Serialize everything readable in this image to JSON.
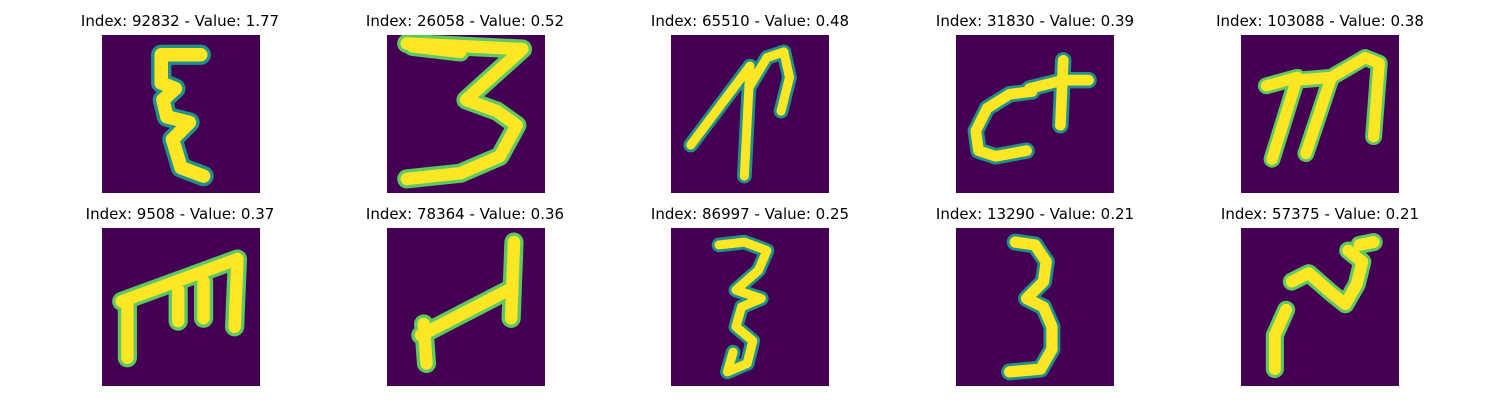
{
  "figure": {
    "background_color": "#ffffff",
    "image_background_color": "#440154",
    "stroke_colors": [
      "#fde725",
      "#5ec962",
      "#21918c",
      "#3b528b"
    ],
    "panels": [
      {
        "title": "Index: 92832 - Value: 1.77",
        "glyph": "tall-squiggle-3-shape"
      },
      {
        "title": "Index: 26058 - Value: 0.52",
        "glyph": "wide-digit-3"
      },
      {
        "title": "Index: 65510 - Value: 0.48",
        "glyph": "slanted-stroke-with-arc"
      },
      {
        "title": "Index: 31830 - Value: 0.39",
        "glyph": "c-with-cross"
      },
      {
        "title": "Index: 103088 - Value: 0.38",
        "glyph": "lowercase-m"
      },
      {
        "title": "Index: 9508 - Value: 0.37",
        "glyph": "rotated-m-e-shape"
      },
      {
        "title": "Index: 78364 - Value: 0.36",
        "glyph": "rotated-h-shape"
      },
      {
        "title": "Index: 86997 - Value: 0.25",
        "glyph": "thin-digit-3"
      },
      {
        "title": "Index: 13290 - Value: 0.21",
        "glyph": "digit-3"
      },
      {
        "title": "Index: 57375 - Value: 0.21",
        "glyph": "n-shape"
      }
    ]
  }
}
